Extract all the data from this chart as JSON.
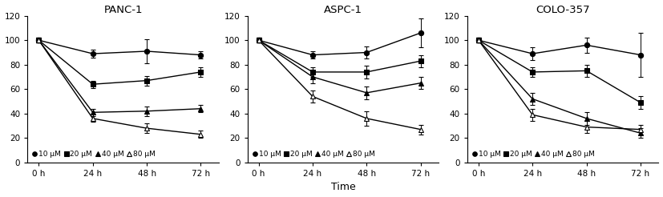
{
  "panels": [
    {
      "title": "PANC-1",
      "x": [
        0,
        24,
        48,
        72
      ],
      "series": [
        {
          "label": "10 μM",
          "marker": "circle_filled",
          "values": [
            100,
            89,
            91,
            88
          ],
          "yerr": [
            2,
            3,
            10,
            3
          ]
        },
        {
          "label": "20 μM",
          "marker": "square_filled",
          "values": [
            100,
            64,
            67,
            74
          ],
          "yerr": [
            2,
            3,
            4,
            4
          ]
        },
        {
          "label": "40 μM",
          "marker": "triangle_filled",
          "values": [
            100,
            41,
            42,
            44
          ],
          "yerr": [
            2,
            3,
            4,
            3
          ]
        },
        {
          "label": "80 μM",
          "marker": "triangle_open",
          "values": [
            100,
            36,
            28,
            23
          ],
          "yerr": [
            2,
            3,
            4,
            3
          ]
        }
      ],
      "show_legend": true,
      "show_xlabel": false
    },
    {
      "title": "ASPC-1",
      "x": [
        0,
        24,
        48,
        72
      ],
      "series": [
        {
          "label": "10 μM",
          "marker": "circle_filled",
          "values": [
            100,
            88,
            90,
            106
          ],
          "yerr": [
            2,
            3,
            5,
            12
          ]
        },
        {
          "label": "20 μM",
          "marker": "square_filled",
          "values": [
            100,
            74,
            74,
            83
          ],
          "yerr": [
            2,
            4,
            5,
            5
          ]
        },
        {
          "label": "40 μM",
          "marker": "triangle_filled",
          "values": [
            100,
            70,
            57,
            65
          ],
          "yerr": [
            2,
            5,
            5,
            5
          ]
        },
        {
          "label": "80 μM",
          "marker": "triangle_open",
          "values": [
            100,
            54,
            36,
            27
          ],
          "yerr": [
            2,
            5,
            6,
            4
          ]
        }
      ],
      "show_legend": true,
      "show_xlabel": true
    },
    {
      "title": "COLO-357",
      "x": [
        0,
        24,
        48,
        72
      ],
      "series": [
        {
          "label": "10 μM",
          "marker": "circle_filled",
          "values": [
            100,
            89,
            96,
            88
          ],
          "yerr": [
            2,
            5,
            6,
            18
          ]
        },
        {
          "label": "20 μM",
          "marker": "square_filled",
          "values": [
            100,
            74,
            75,
            49
          ],
          "yerr": [
            2,
            4,
            5,
            5
          ]
        },
        {
          "label": "40 μM",
          "marker": "triangle_filled",
          "values": [
            100,
            52,
            36,
            24
          ],
          "yerr": [
            2,
            5,
            5,
            4
          ]
        },
        {
          "label": "80 μM",
          "marker": "triangle_open",
          "values": [
            100,
            39,
            29,
            27
          ],
          "yerr": [
            2,
            5,
            5,
            4
          ]
        }
      ],
      "show_legend": true,
      "show_xlabel": false
    }
  ],
  "xlabel": "Time",
  "ylim": [
    0,
    120
  ],
  "yticks": [
    0,
    20,
    40,
    60,
    80,
    100,
    120
  ],
  "xtick_labels": [
    "0 h",
    "24 h",
    "48 h",
    "72 h"
  ],
  "color": "#000000",
  "linewidth": 1.0,
  "markersize": 4.5,
  "tick_fontsize": 7.5,
  "title_fontsize": 9.5,
  "legend_fontsize": 6.5,
  "xlabel_fontsize": 9
}
